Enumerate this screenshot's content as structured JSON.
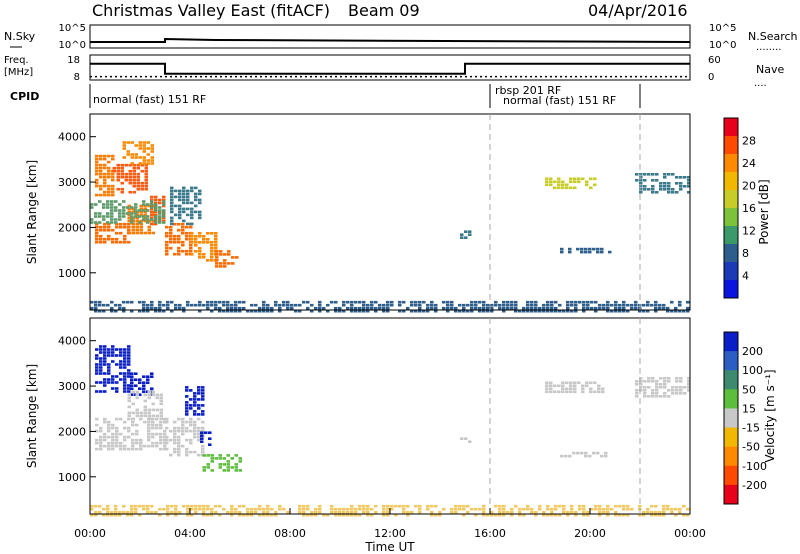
{
  "header": {
    "title": "Christmas Valley East (fitACF)",
    "beam": "Beam 09",
    "date": "04/Apr/2016"
  },
  "top_panels": {
    "nsky_label": "N.Sky",
    "nsky_ticks": [
      "10^5",
      "10^0"
    ],
    "nsearch_label": "N.Search",
    "nsearch_ticks": [
      "10^5",
      "10^0"
    ],
    "freq_label_1": "Freq.",
    "freq_label_2": "[MHz]",
    "freq_ticks": [
      "18",
      "8"
    ],
    "nave_label": "Nave",
    "nave_ticks": [
      "60",
      "0"
    ],
    "cpid_label": "CPID",
    "cpid_segments": [
      {
        "text": "normal (fast) 151 RF"
      },
      {
        "text": "rbsp 201 RF"
      },
      {
        "text": "normal (fast) 151 RF"
      }
    ]
  },
  "axes": {
    "ylabel": "Slant Range [km]",
    "yticks": [
      "4000",
      "3000",
      "2000",
      "1000"
    ],
    "xlabel": "Time UT",
    "xticks": [
      "00:00",
      "04:00",
      "08:00",
      "12:00",
      "16:00",
      "20:00",
      "00:00"
    ]
  },
  "power_colorbar": {
    "label": "Power [dB]",
    "ticks": [
      "28",
      "24",
      "20",
      "16",
      "12",
      "8",
      "4"
    ],
    "colors": [
      "#e8001c",
      "#ff4a00",
      "#ff8a00",
      "#f2b800",
      "#c8cc28",
      "#7cc23a",
      "#3c9a6a",
      "#2e5e8c",
      "#1a3ab8",
      "#0a14e0"
    ]
  },
  "velocity_colorbar": {
    "label": "Velocity [m s⁻¹]",
    "ticks": [
      "200",
      "100",
      "50",
      "15",
      "-15",
      "-50",
      "-100",
      "-200"
    ],
    "colors": [
      "#0a1ec8",
      "#2a5ec0",
      "#3e8a6e",
      "#5cbe3c",
      "#c8c8c8",
      "#f2b800",
      "#ff8a00",
      "#ff4a00",
      "#e8001c"
    ]
  },
  "chart_data": {
    "type": "heatmap",
    "x_range_hours": [
      0,
      24
    ],
    "y_range_km": [
      180,
      4500
    ],
    "nsky_level": 3,
    "freq_mhz": [
      {
        "start": 0,
        "end": 3,
        "value": 14.5
      },
      {
        "start": 3,
        "end": 15,
        "value": 10.5
      },
      {
        "start": 15,
        "end": 24,
        "value": 14.5
      }
    ],
    "nave": 8,
    "cpid_boundaries_hours": [
      16,
      22
    ],
    "power_regions": [
      {
        "t0": 0.2,
        "t1": 0.9,
        "r0": 2700,
        "r1": 3600,
        "color": "#ff7a00"
      },
      {
        "t0": 0.9,
        "t1": 2.2,
        "r0": 2800,
        "r1": 3400,
        "color": "#ff5a10"
      },
      {
        "t0": 1.3,
        "t1": 2.5,
        "r0": 3400,
        "r1": 3900,
        "color": "#ff8a00"
      },
      {
        "t0": 0.2,
        "t1": 1.5,
        "r0": 1700,
        "r1": 2100,
        "color": "#ff6a00"
      },
      {
        "t0": 1.5,
        "t1": 2.6,
        "r0": 1900,
        "r1": 2500,
        "color": "#ff7a00"
      },
      {
        "t0": 2.4,
        "t1": 3.0,
        "r0": 2100,
        "r1": 2700,
        "color": "#ff5a10"
      },
      {
        "t0": 3.0,
        "t1": 4.0,
        "r0": 1400,
        "r1": 2100,
        "color": "#ff6a00"
      },
      {
        "t0": 4.0,
        "t1": 5.0,
        "r0": 1300,
        "r1": 1900,
        "color": "#ff8a00"
      },
      {
        "t0": 5.0,
        "t1": 5.9,
        "r0": 1150,
        "r1": 1500,
        "color": "#ff6a00"
      },
      {
        "t0": 0.0,
        "t1": 3.0,
        "r0": 2100,
        "r1": 2600,
        "color": "#5c9a6a"
      },
      {
        "t0": 3.2,
        "t1": 4.4,
        "r0": 2100,
        "r1": 2900,
        "color": "#3a7a8c"
      },
      {
        "t0": 0.0,
        "t1": 24.0,
        "r0": 180,
        "r1": 380,
        "color": "#2e5e8c"
      },
      {
        "t0": 14.8,
        "t1": 15.2,
        "r0": 1800,
        "r1": 2000,
        "color": "#3a7a8c"
      },
      {
        "t0": 18.8,
        "t1": 20.8,
        "r0": 1450,
        "r1": 1550,
        "color": "#2e5e8c"
      },
      {
        "t0": 18.2,
        "t1": 20.2,
        "r0": 2850,
        "r1": 3100,
        "color": "#c8cc28"
      },
      {
        "t0": 21.8,
        "t1": 24.0,
        "r0": 2800,
        "r1": 3200,
        "color": "#3a7a8c"
      }
    ],
    "velocity_regions": [
      {
        "t0": 0.2,
        "t1": 1.6,
        "r0": 2900,
        "r1": 3900,
        "color": "#0a1ec8"
      },
      {
        "t0": 1.6,
        "t1": 2.5,
        "r0": 2800,
        "r1": 3300,
        "color": "#0a1ec8"
      },
      {
        "t0": 0.2,
        "t1": 3.0,
        "r0": 1600,
        "r1": 2300,
        "color": "#c8c8c8"
      },
      {
        "t0": 1.5,
        "t1": 2.8,
        "r0": 2300,
        "r1": 2900,
        "color": "#c8c8c8"
      },
      {
        "t0": 3.0,
        "t1": 4.5,
        "r0": 1500,
        "r1": 2300,
        "color": "#c8c8c8"
      },
      {
        "t0": 3.8,
        "t1": 4.5,
        "r0": 2400,
        "r1": 3000,
        "color": "#0a1ec8"
      },
      {
        "t0": 4.4,
        "t1": 4.8,
        "r0": 1700,
        "r1": 2000,
        "color": "#0a1ec8"
      },
      {
        "t0": 4.5,
        "t1": 6.0,
        "r0": 1150,
        "r1": 1500,
        "color": "#5cbe3c"
      },
      {
        "t0": 0.0,
        "t1": 24.0,
        "r0": 180,
        "r1": 380,
        "color": "#f2c860"
      },
      {
        "t0": 14.8,
        "t1": 15.2,
        "r0": 1800,
        "r1": 2000,
        "color": "#c8c8c8"
      },
      {
        "t0": 18.2,
        "t1": 20.5,
        "r0": 2900,
        "r1": 3100,
        "color": "#c8c8c8"
      },
      {
        "t0": 18.8,
        "t1": 20.8,
        "r0": 1450,
        "r1": 1550,
        "color": "#c8c8c8"
      },
      {
        "t0": 21.8,
        "t1": 24.0,
        "r0": 2800,
        "r1": 3200,
        "color": "#c8c8c8"
      }
    ]
  }
}
